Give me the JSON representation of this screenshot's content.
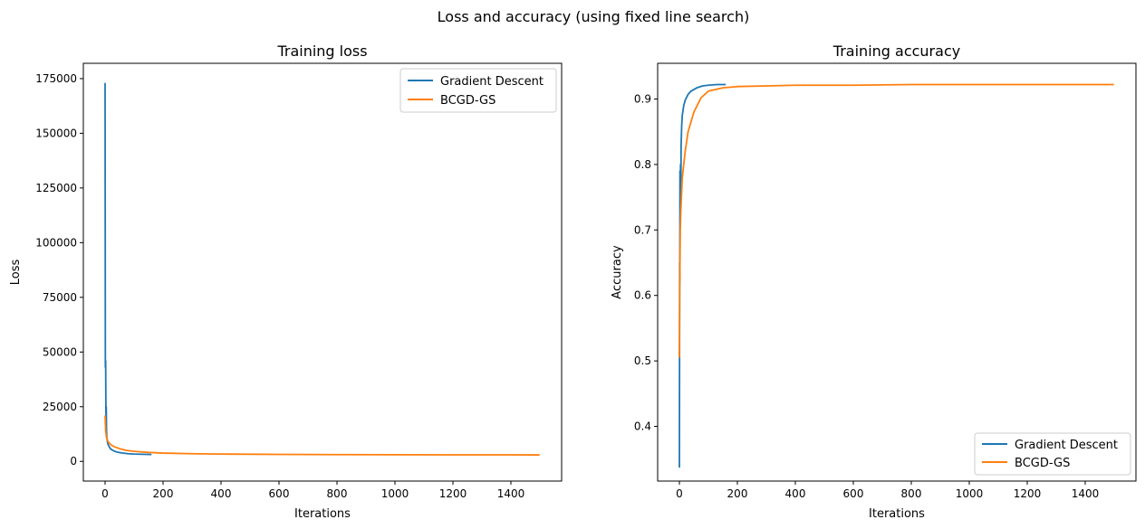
{
  "figure": {
    "suptitle": "Loss and accuracy (using fixed line search)"
  },
  "colors": {
    "gd": "#1f77b4",
    "bcgd": "#ff7f0e",
    "frame": "#000000",
    "legend_border": "#cccccc"
  },
  "chart_data": [
    {
      "type": "line",
      "title": "Training loss",
      "xlabel": "Iterations",
      "ylabel": "Loss",
      "xlim": [
        -75,
        1575
      ],
      "ylim": [
        -9000,
        182000
      ],
      "xticks": [
        0,
        200,
        400,
        600,
        800,
        1000,
        1200,
        1400
      ],
      "yticks": [
        0,
        25000,
        50000,
        75000,
        100000,
        125000,
        150000,
        175000
      ],
      "grid": false,
      "legend": "top-right",
      "series": [
        {
          "name": "Gradient Descent",
          "color_key": "gd",
          "x": [
            0,
            1,
            2,
            3,
            4,
            5,
            6,
            8,
            10,
            15,
            20,
            30,
            40,
            60,
            80,
            100,
            130,
            160
          ],
          "y": [
            173000,
            43000,
            46000,
            20000,
            25000,
            14000,
            11000,
            9000,
            7800,
            6500,
            5600,
            4800,
            4300,
            3800,
            3500,
            3350,
            3250,
            3150
          ]
        },
        {
          "name": "BCGD-GS",
          "color_key": "bcgd",
          "x": [
            0,
            2,
            5,
            10,
            20,
            30,
            50,
            75,
            100,
            150,
            200,
            300,
            400,
            600,
            800,
            1000,
            1200,
            1400,
            1499
          ],
          "y": [
            21000,
            14000,
            11000,
            9000,
            7600,
            6800,
            5800,
            5000,
            4600,
            4100,
            3800,
            3500,
            3350,
            3200,
            3100,
            3050,
            3000,
            2980,
            2970
          ]
        }
      ]
    },
    {
      "type": "line",
      "title": "Training accuracy",
      "xlabel": "Iterations",
      "ylabel": "Accuracy",
      "xlim": [
        -75,
        1575
      ],
      "ylim": [
        0.3165,
        0.9545
      ],
      "xticks": [
        0,
        200,
        400,
        600,
        800,
        1000,
        1200,
        1400
      ],
      "yticks": [
        0.4,
        0.5,
        0.6,
        0.7,
        0.8,
        0.9
      ],
      "grid": false,
      "legend": "bottom-right",
      "series": [
        {
          "name": "Gradient Descent",
          "color_key": "gd",
          "x": [
            0,
            1,
            1.5,
            2,
            3,
            4,
            5,
            6,
            8,
            10,
            15,
            20,
            30,
            40,
            60,
            80,
            100,
            130,
            160
          ],
          "y": [
            0.337,
            0.65,
            0.62,
            0.79,
            0.71,
            0.8,
            0.76,
            0.83,
            0.86,
            0.875,
            0.89,
            0.898,
            0.907,
            0.912,
            0.917,
            0.92,
            0.921,
            0.922,
            0.922
          ]
        },
        {
          "name": "BCGD-GS",
          "color_key": "bcgd",
          "x": [
            0,
            1,
            3,
            5,
            10,
            20,
            30,
            50,
            75,
            100,
            150,
            200,
            300,
            400,
            600,
            800,
            1000,
            1200,
            1400,
            1499
          ],
          "y": [
            0.505,
            0.6,
            0.7,
            0.73,
            0.78,
            0.82,
            0.85,
            0.88,
            0.902,
            0.912,
            0.917,
            0.919,
            0.92,
            0.921,
            0.921,
            0.922,
            0.922,
            0.922,
            0.922,
            0.922
          ]
        }
      ]
    }
  ]
}
